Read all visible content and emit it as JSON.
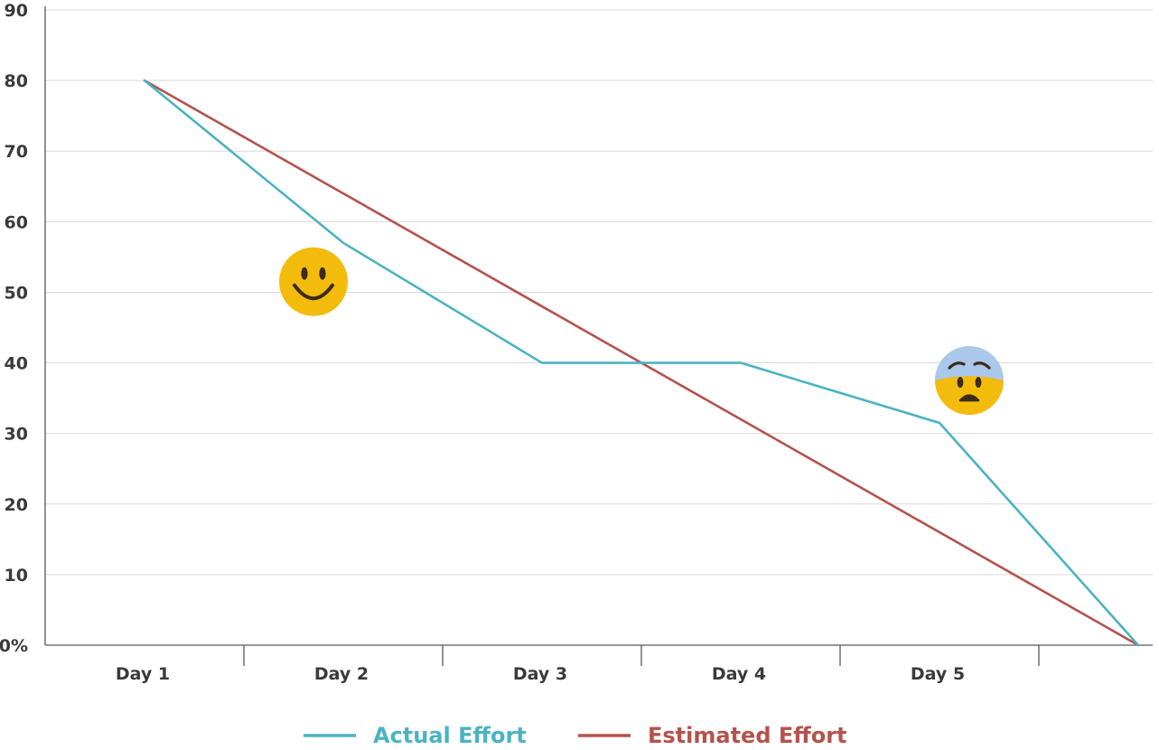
{
  "chart_data": {
    "type": "line",
    "categories": [
      "Day 1",
      "Day 2",
      "Day 3",
      "Day 4",
      "Day 5",
      ""
    ],
    "ylim": [
      0,
      90
    ],
    "yticks": [
      {
        "value": 0,
        "label": "0%"
      },
      {
        "value": 10,
        "label": "10"
      },
      {
        "value": 20,
        "label": "20"
      },
      {
        "value": 30,
        "label": "30"
      },
      {
        "value": 40,
        "label": "40"
      },
      {
        "value": 50,
        "label": "50"
      },
      {
        "value": 60,
        "label": "60"
      },
      {
        "value": 70,
        "label": "70"
      },
      {
        "value": 80,
        "label": "80"
      },
      {
        "value": 90,
        "label": "90"
      }
    ],
    "grid": true,
    "legend_position": "bottom",
    "series": [
      {
        "name": "Actual Effort",
        "color": "#4bb3c1",
        "values": [
          80,
          57,
          40,
          40,
          31.5,
          0
        ]
      },
      {
        "name": "Estimated Effort",
        "color": "#b4524d",
        "values": [
          80,
          64,
          48,
          32,
          16,
          0
        ]
      }
    ],
    "annotations": [
      {
        "icon": "smiley-face-icon",
        "category_index": 0.85,
        "value": 51.5
      },
      {
        "icon": "anxious-face-icon",
        "category_index": 4.15,
        "value": 37.5
      }
    ]
  }
}
